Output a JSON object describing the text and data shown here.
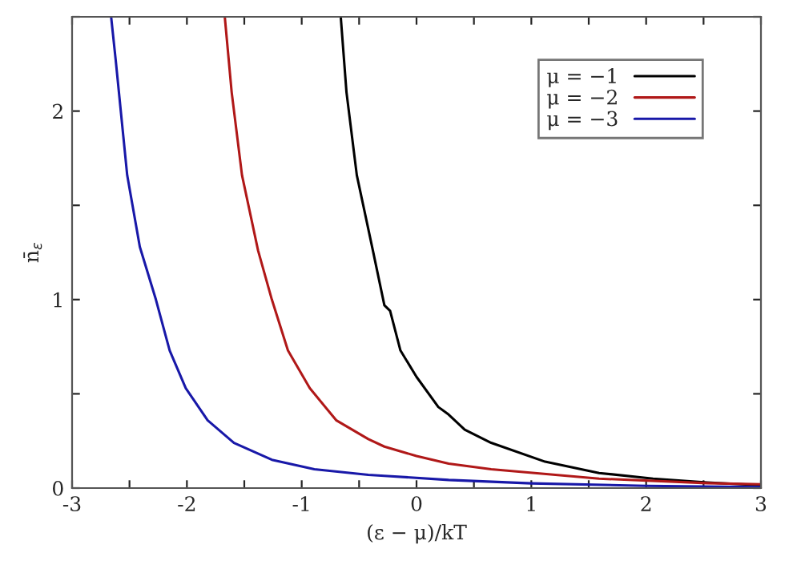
{
  "chart_data": {
    "type": "line",
    "xlabel": "(ε − μ)/kT",
    "ylabel": "n̄$_{ε}$",
    "xlim": [
      -3,
      3
    ],
    "ylim": [
      0,
      2.5
    ],
    "xticks": [
      -3,
      {
        "value": -2.5,
        "label": null
      },
      -2,
      {
        "value": -1.5,
        "label": null
      },
      -1,
      {
        "value": -0.5,
        "label": null
      },
      0,
      {
        "value": 0.5,
        "label": null
      },
      1,
      {
        "value": 1.5,
        "label": null
      },
      2,
      {
        "value": 2.5,
        "label": null
      },
      3
    ],
    "yticks": [
      0,
      {
        "value": 0.5,
        "label": null
      },
      1,
      {
        "value": 1.5,
        "label": null
      },
      2,
      {
        "value": 2.5,
        "label": null
      }
    ],
    "grid": false,
    "legend": "top right",
    "line_style": "solid",
    "marker": "none",
    "series": [
      {
        "name": "μ = −1",
        "color": "#000000",
        "x": [
          -0.66,
          -0.61,
          -0.52,
          -0.38,
          -0.28,
          -0.23,
          -0.14,
          0,
          0.19,
          0.28,
          0.42,
          0.65,
          1.12,
          1.59,
          2.06,
          2.53,
          3
        ],
        "values": [
          2.5,
          2.1,
          1.66,
          1.26,
          0.97,
          0.94,
          0.73,
          0.59,
          0.43,
          0.39,
          0.31,
          0.24,
          0.14,
          0.08,
          0.05,
          0.03,
          0.015
        ]
      },
      {
        "name": "μ = −2",
        "color": "#b01818",
        "x": [
          -1.67,
          -1.61,
          -1.52,
          -1.38,
          -1.26,
          -1.12,
          -0.93,
          -0.7,
          -0.42,
          -0.28,
          0,
          0.28,
          0.65,
          1.59,
          2.53,
          3
        ],
        "values": [
          2.5,
          2.1,
          1.66,
          1.26,
          1.0,
          0.73,
          0.53,
          0.36,
          0.26,
          0.22,
          0.17,
          0.13,
          0.1,
          0.05,
          0.026,
          0.02
        ]
      },
      {
        "name": "μ = −3",
        "color": "#1818a8",
        "x": [
          -2.66,
          -2.62,
          -2.52,
          -2.41,
          -2.27,
          -2.15,
          -2.01,
          -1.82,
          -1.59,
          -1.26,
          -0.89,
          -0.42,
          -0.28,
          0.28,
          1,
          2,
          3
        ],
        "values": [
          2.5,
          2.27,
          1.66,
          1.28,
          1.0,
          0.73,
          0.53,
          0.36,
          0.24,
          0.15,
          0.1,
          0.07,
          0.065,
          0.043,
          0.025,
          0.012,
          0.005
        ]
      }
    ]
  }
}
